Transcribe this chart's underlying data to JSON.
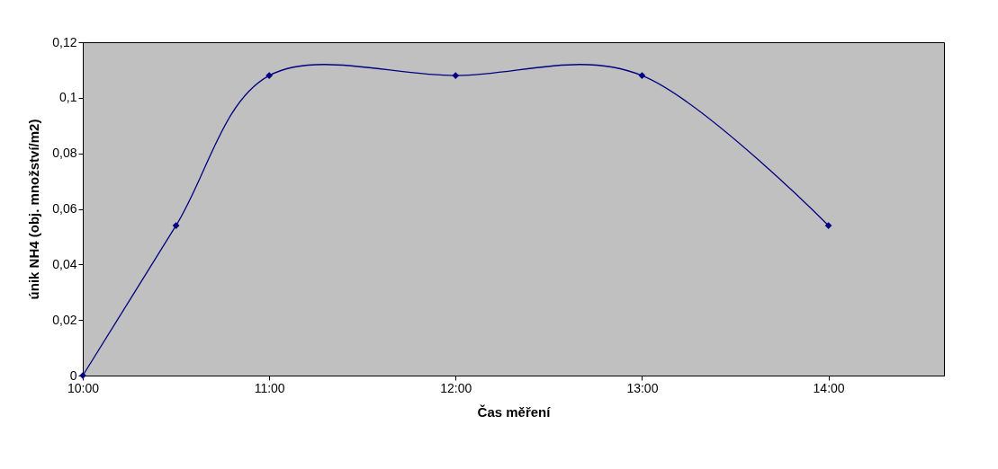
{
  "chart_data": {
    "type": "line",
    "xlabel": "Čas měření",
    "ylabel": "únik NH4 (obj. množství/m2)",
    "x": [
      10,
      10.5,
      11,
      12,
      13,
      14
    ],
    "series": [
      {
        "color": "#000080",
        "values": [
          0,
          0.054,
          0.108,
          0.108,
          0.108,
          0.054
        ]
      }
    ],
    "xlim": [
      10,
      14.62
    ],
    "xticks": [
      {
        "value": 10,
        "label": "10:00"
      },
      {
        "value": 11,
        "label": "11:00"
      },
      {
        "value": 12,
        "label": "12:00"
      },
      {
        "value": 13,
        "label": "13:00"
      },
      {
        "value": 14,
        "label": "14:00"
      }
    ],
    "ylim": [
      0,
      0.12
    ],
    "yticks": [
      0,
      {
        "value": 0.02,
        "label": "0,02"
      },
      {
        "value": 0.04,
        "label": "0,04"
      },
      {
        "value": 0.06,
        "label": "0,06"
      },
      {
        "value": 0.08,
        "label": "0,08"
      },
      {
        "value": 0.1,
        "label": "0,1"
      },
      {
        "value": 0.12,
        "label": "0,12"
      }
    ],
    "marker": "diamond",
    "line_style": "solid",
    "grid": false
  }
}
